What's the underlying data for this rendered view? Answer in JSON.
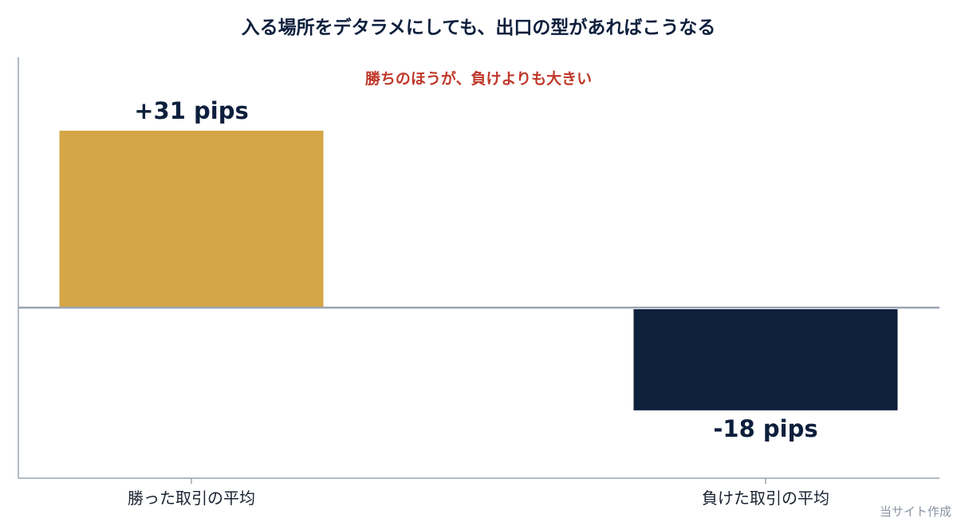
{
  "chart_data": {
    "type": "bar",
    "title": "入る場所をデタラメにしても、出口の型があればこうなる",
    "annotation": "勝ちのほうが、負けよりも大きい",
    "categories": [
      "勝った取引の平均",
      "負けた取引の平均"
    ],
    "values": [
      31,
      -18
    ],
    "unit": "pips",
    "value_labels": [
      "+31 pips",
      "-18 pips"
    ],
    "ylim": [
      -30,
      43
    ],
    "grid": false,
    "legend": "none",
    "source": "当サイト作成"
  },
  "colors": {
    "win_bar": "#d4a645",
    "loss_bar": "#0e203b",
    "title": "#0d1f3c",
    "annotation": "#c0392b",
    "axis": "#9aa4b2",
    "zero_line": "#9aa4b2",
    "source": "#8a94a3"
  }
}
